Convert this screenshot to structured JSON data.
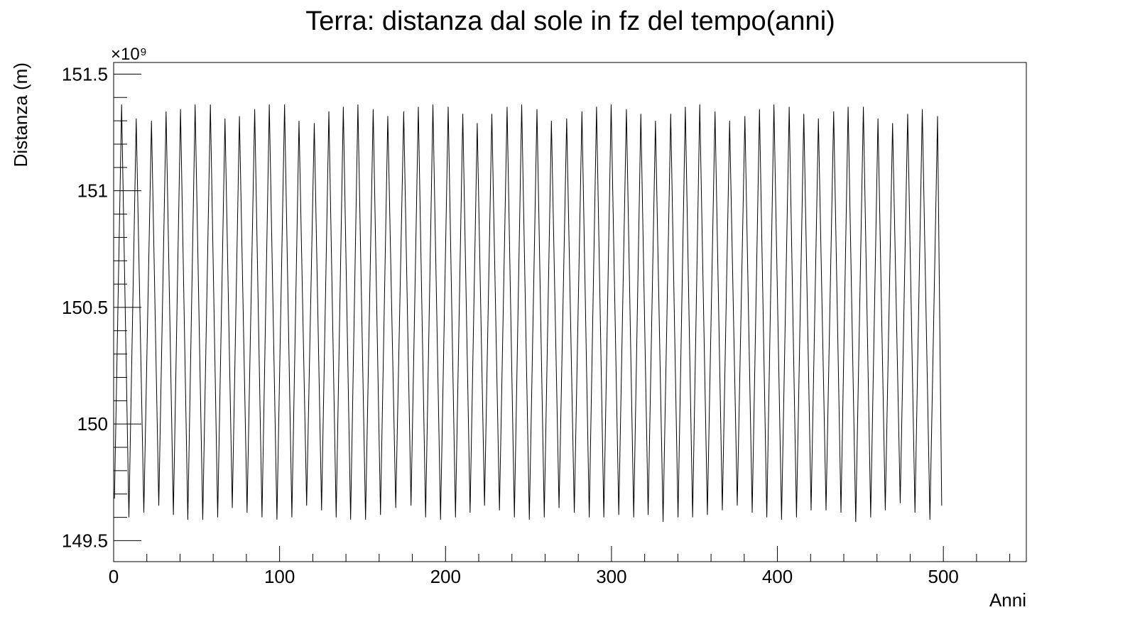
{
  "chart_data": {
    "type": "line",
    "title": "Terra: distanza dal sole in fz del tempo(anni)",
    "x_label": "Anni",
    "y_label": "Distanza (m)",
    "y_multiplier": "×10⁹",
    "color": "#000000",
    "xlim": [
      0,
      550
    ],
    "ylim": [
      149.41,
      151.55
    ],
    "xticks": [
      0,
      100,
      200,
      300,
      400,
      500
    ],
    "yticks": [
      149.5,
      150,
      150.5,
      151,
      151.5
    ],
    "xminorticks": [
      20,
      40,
      60,
      80,
      120,
      140,
      160,
      180,
      220,
      240,
      260,
      280,
      320,
      340,
      360,
      380,
      420,
      440,
      460,
      480,
      520,
      540
    ],
    "yminorticks": [
      149.6,
      149.7,
      149.8,
      149.9,
      150.1,
      150.2,
      150.3,
      150.4,
      150.6,
      150.7,
      150.8,
      150.9,
      151.1,
      151.2,
      151.3,
      151.4
    ],
    "x": [
      0.5,
      4.8,
      9.2,
      13.6,
      18.2,
      22.8,
      27.2,
      31.6,
      36.0,
      40.3,
      44.7,
      49.1,
      53.7,
      58.3,
      62.7,
      67.1,
      71.5,
      75.8,
      80.4,
      85.0,
      89.4,
      93.8,
      98.4,
      103.0,
      107.4,
      111.7,
      116.3,
      120.9,
      125.3,
      129.7,
      134.1,
      138.4,
      142.8,
      147.2,
      151.8,
      156.4,
      160.8,
      165.2,
      170.0,
      174.8,
      179.2,
      183.6,
      188.0,
      192.4,
      197.0,
      201.6,
      206.0,
      210.4,
      214.8,
      219.1,
      223.5,
      227.9,
      232.5,
      237.1,
      241.5,
      245.9,
      250.5,
      255.1,
      259.5,
      263.8,
      268.4,
      273.0,
      277.6,
      282.2,
      286.6,
      291.0,
      295.4,
      299.8,
      304.4,
      309.0,
      313.4,
      317.7,
      322.1,
      326.5,
      331.1,
      335.7,
      340.1,
      344.5,
      348.9,
      353.2,
      357.8,
      362.4,
      366.8,
      371.2,
      375.8,
      380.4,
      384.8,
      389.2,
      393.6,
      397.9,
      402.5,
      407.1,
      411.5,
      415.9,
      420.3,
      424.7,
      429.3,
      433.9,
      438.3,
      442.6,
      447.2,
      451.8,
      456.2,
      460.6,
      465.0,
      469.4,
      474.0,
      478.5,
      482.9,
      487.3,
      491.9,
      496.5,
      499.0
    ],
    "values": [
      149.68,
      151.37,
      149.6,
      151.31,
      149.62,
      151.3,
      149.65,
      151.34,
      149.61,
      151.35,
      149.59,
      151.37,
      149.59,
      151.37,
      149.6,
      151.31,
      149.64,
      151.32,
      149.62,
      151.35,
      149.6,
      151.37,
      149.59,
      151.37,
      149.6,
      151.3,
      149.65,
      151.29,
      149.63,
      151.34,
      149.6,
      151.36,
      149.59,
      151.37,
      149.59,
      151.35,
      149.61,
      151.32,
      149.64,
      151.34,
      149.65,
      151.36,
      149.6,
      151.37,
      149.59,
      151.36,
      149.6,
      151.33,
      149.62,
      151.29,
      149.65,
      151.33,
      149.63,
      151.36,
      149.6,
      151.37,
      149.59,
      151.35,
      149.6,
      151.3,
      149.64,
      151.31,
      149.62,
      151.34,
      149.6,
      151.36,
      149.6,
      151.37,
      149.61,
      151.35,
      149.6,
      151.33,
      149.61,
      151.3,
      149.58,
      151.33,
      149.6,
      151.36,
      149.6,
      151.37,
      149.61,
      151.34,
      149.63,
      151.3,
      149.65,
      151.32,
      149.62,
      151.35,
      149.6,
      151.37,
      149.59,
      151.36,
      149.6,
      151.33,
      149.63,
      151.31,
      149.63,
      151.34,
      149.62,
      151.36,
      149.58,
      151.36,
      149.6,
      151.31,
      149.63,
      151.29,
      149.66,
      151.33,
      149.62,
      151.35,
      149.59,
      151.32,
      149.65
    ]
  }
}
